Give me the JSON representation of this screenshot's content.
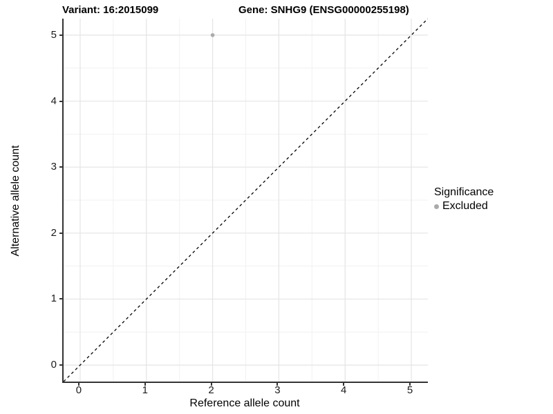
{
  "chart_data": {
    "type": "scatter",
    "title_left": "Variant: 16:2015099",
    "title_right": "Gene: SNHG9 (ENSG00000255198)",
    "xlabel": "Reference allele count",
    "ylabel": "Alternative allele count",
    "xlim": [
      -0.25,
      5.25
    ],
    "ylim": [
      -0.25,
      5.25
    ],
    "xticks": [
      0,
      1,
      2,
      3,
      4,
      5
    ],
    "yticks": [
      0,
      1,
      2,
      3,
      4,
      5
    ],
    "minor_ticks": [
      0.5,
      1.5,
      2.5,
      3.5,
      4.5
    ],
    "grid": "major and minor, light gray on white",
    "points": [
      {
        "x": 2,
        "y": 5,
        "series": "Excluded"
      }
    ],
    "reference_line": {
      "type": "identity",
      "slope": 1,
      "intercept": 0,
      "style": "dashed",
      "color": "#000000"
    },
    "legend": {
      "position": "right",
      "title": "Significance",
      "items": [
        {
          "label": "Excluded",
          "color": "#aaaaaa"
        }
      ]
    },
    "colors": {
      "background": "#ffffff",
      "point": "#aaaaaa",
      "grid_major": "#e4e4e4",
      "grid_minor": "#f1f1f1",
      "axis_line": "#333333",
      "tick_text": "#1a1a1a"
    }
  }
}
